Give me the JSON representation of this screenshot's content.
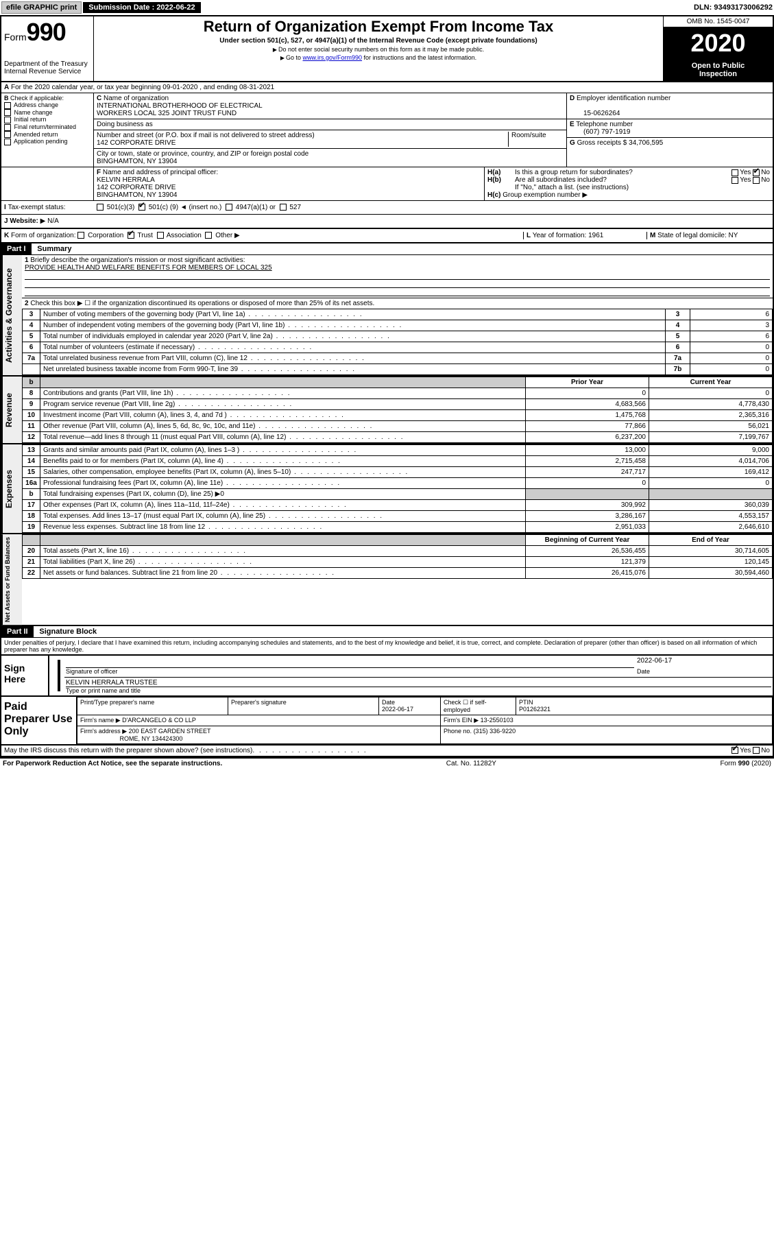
{
  "topbar": {
    "efile": "efile GRAPHIC print",
    "submission_label": "Submission Date : 2022-06-22",
    "dln": "DLN: 93493173006292"
  },
  "header": {
    "form_word": "Form",
    "form_num": "990",
    "dept1": "Department of the Treasury",
    "dept2": "Internal Revenue Service",
    "title": "Return of Organization Exempt From Income Tax",
    "subtitle": "Under section 501(c), 527, or 4947(a)(1) of the Internal Revenue Code (except private foundations)",
    "line1": "Do not enter social security numbers on this form as it may be made public.",
    "line2_pre": "Go to ",
    "line2_link": "www.irs.gov/Form990",
    "line2_post": " for instructions and the latest information.",
    "omb": "OMB No. 1545-0047",
    "year": "2020",
    "open1": "Open to Public",
    "open2": "Inspection"
  },
  "a": {
    "text": "For the 2020 calendar year, or tax year beginning 09-01-2020   , and ending 08-31-2021"
  },
  "b": {
    "label": "Check if applicable:",
    "opts": [
      "Address change",
      "Name change",
      "Initial return",
      "Final return/terminated",
      "Amended return",
      "Application pending"
    ]
  },
  "c": {
    "name_label": "Name of organization",
    "name1": "INTERNATIONAL BROTHERHOOD OF ELECTRICAL",
    "name2": "WORKERS LOCAL 325 JOINT TRUST FUND",
    "dba_label": "Doing business as",
    "street_label": "Number and street (or P.O. box if mail is not delivered to street address)",
    "room_label": "Room/suite",
    "street": "142 CORPORATE DRIVE",
    "city_label": "City or town, state or province, country, and ZIP or foreign postal code",
    "city": "BINGHAMTON, NY  13904"
  },
  "d": {
    "label": "Employer identification number",
    "val": "15-0626264"
  },
  "e": {
    "label": "Telephone number",
    "val": "(607) 797-1919"
  },
  "g": {
    "label": "Gross receipts $",
    "val": "34,706,595"
  },
  "f": {
    "label": "Name and address of principal officer:",
    "name": "KELVIN HERRALA",
    "street": "142 CORPORATE DRIVE",
    "city": "BINGHAMTON, NY  13904"
  },
  "h": {
    "a_label": "Is this a group return for subordinates?",
    "b_label": "Are all subordinates included?",
    "b_note": "If \"No,\" attach a list. (see instructions)",
    "c_label": "Group exemption number",
    "yes": "Yes",
    "no": "No"
  },
  "i": {
    "label": "Tax-exempt status:",
    "c3": "501(c)(3)",
    "c_pre": "501(c) (",
    "c_num": "9",
    "c_post": ") ◄ (insert no.)",
    "a1": "4947(a)(1) or",
    "s527": "527"
  },
  "j": {
    "label": "Website:",
    "val": "N/A"
  },
  "k": {
    "label": "Form of organization:",
    "corp": "Corporation",
    "trust": "Trust",
    "assoc": "Association",
    "other": "Other"
  },
  "l": {
    "label": "Year of formation:",
    "val": "1961"
  },
  "m": {
    "label": "State of legal domicile:",
    "val": "NY"
  },
  "part1": {
    "label": "Part I",
    "title": "Summary",
    "q1": "Briefly describe the organization's mission or most significant activities:",
    "q1_ans": "PROVIDE HEALTH AND WELFARE BENEFITS FOR MEMBERS OF LOCAL 325",
    "q2": "Check this box ▶ ☐ if the organization discontinued its operations or disposed of more than 25% of its net assets.",
    "vert_gov": "Activities & Governance",
    "vert_rev": "Revenue",
    "vert_exp": "Expenses",
    "vert_net": "Net Assets or Fund Balances",
    "col_prior": "Prior Year",
    "col_current": "Current Year",
    "col_begin": "Beginning of Current Year",
    "col_end": "End of Year",
    "lines_gov": [
      {
        "n": "3",
        "t": "Number of voting members of the governing body (Part VI, line 1a)",
        "box": "3",
        "v": "6"
      },
      {
        "n": "4",
        "t": "Number of independent voting members of the governing body (Part VI, line 1b)",
        "box": "4",
        "v": "3"
      },
      {
        "n": "5",
        "t": "Total number of individuals employed in calendar year 2020 (Part V, line 2a)",
        "box": "5",
        "v": "6"
      },
      {
        "n": "6",
        "t": "Total number of volunteers (estimate if necessary)",
        "box": "6",
        "v": "0"
      },
      {
        "n": "7a",
        "t": "Total unrelated business revenue from Part VIII, column (C), line 12",
        "box": "7a",
        "v": "0"
      },
      {
        "n": "",
        "t": "Net unrelated business taxable income from Form 990-T, line 39",
        "box": "7b",
        "v": "0"
      }
    ],
    "lines_rev": [
      {
        "n": "8",
        "t": "Contributions and grants (Part VIII, line 1h)",
        "p": "0",
        "c": "0"
      },
      {
        "n": "9",
        "t": "Program service revenue (Part VIII, line 2g)",
        "p": "4,683,566",
        "c": "4,778,430"
      },
      {
        "n": "10",
        "t": "Investment income (Part VIII, column (A), lines 3, 4, and 7d )",
        "p": "1,475,768",
        "c": "2,365,316"
      },
      {
        "n": "11",
        "t": "Other revenue (Part VIII, column (A), lines 5, 6d, 8c, 9c, 10c, and 11e)",
        "p": "77,866",
        "c": "56,021"
      },
      {
        "n": "12",
        "t": "Total revenue—add lines 8 through 11 (must equal Part VIII, column (A), line 12)",
        "p": "6,237,200",
        "c": "7,199,767"
      }
    ],
    "lines_exp": [
      {
        "n": "13",
        "t": "Grants and similar amounts paid (Part IX, column (A), lines 1–3 )",
        "p": "13,000",
        "c": "9,000"
      },
      {
        "n": "14",
        "t": "Benefits paid to or for members (Part IX, column (A), line 4)",
        "p": "2,715,458",
        "c": "4,014,706"
      },
      {
        "n": "15",
        "t": "Salaries, other compensation, employee benefits (Part IX, column (A), lines 5–10)",
        "p": "247,717",
        "c": "169,412"
      },
      {
        "n": "16a",
        "t": "Professional fundraising fees (Part IX, column (A), line 11e)",
        "p": "0",
        "c": "0"
      },
      {
        "n": "b",
        "t": "Total fundraising expenses (Part IX, column (D), line 25) ▶0",
        "p": "",
        "c": "",
        "shade": true
      },
      {
        "n": "17",
        "t": "Other expenses (Part IX, column (A), lines 11a–11d, 11f–24e)",
        "p": "309,992",
        "c": "360,039"
      },
      {
        "n": "18",
        "t": "Total expenses. Add lines 13–17 (must equal Part IX, column (A), line 25)",
        "p": "3,286,167",
        "c": "4,553,157"
      },
      {
        "n": "19",
        "t": "Revenue less expenses. Subtract line 18 from line 12",
        "p": "2,951,033",
        "c": "2,646,610"
      }
    ],
    "lines_net": [
      {
        "n": "20",
        "t": "Total assets (Part X, line 16)",
        "p": "26,536,455",
        "c": "30,714,605"
      },
      {
        "n": "21",
        "t": "Total liabilities (Part X, line 26)",
        "p": "121,379",
        "c": "120,145"
      },
      {
        "n": "22",
        "t": "Net assets or fund balances. Subtract line 21 from line 20",
        "p": "26,415,076",
        "c": "30,594,460"
      }
    ]
  },
  "part2": {
    "label": "Part II",
    "title": "Signature Block",
    "decl": "Under penalties of perjury, I declare that I have examined this return, including accompanying schedules and statements, and to the best of my knowledge and belief, it is true, correct, and complete. Declaration of preparer (other than officer) is based on all information of which preparer has any knowledge."
  },
  "sign": {
    "here": "Sign Here",
    "sig_label": "Signature of officer",
    "date_label": "Date",
    "date_val": "2022-06-17",
    "name": "KELVIN HERRALA  TRUSTEE",
    "name_label": "Type or print name and title"
  },
  "paid": {
    "title": "Paid Preparer Use Only",
    "h1": "Print/Type preparer's name",
    "h2": "Preparer's signature",
    "h3_l": "Date",
    "h3_v": "2022-06-17",
    "h4_l": "Check ☐ if self-employed",
    "h5_l": "PTIN",
    "h5_v": "P01262321",
    "firm_name_l": "Firm's name   ▶",
    "firm_name": "D'ARCANGELO & CO LLP",
    "firm_ein_l": "Firm's EIN ▶",
    "firm_ein": "13-2550103",
    "firm_addr_l": "Firm's address ▶",
    "firm_addr1": "200 EAST GARDEN STREET",
    "firm_addr2": "ROME, NY  134424300",
    "phone_l": "Phone no.",
    "phone": "(315) 336-9220"
  },
  "footer": {
    "discuss": "May the IRS discuss this return with the preparer shown above? (see instructions)",
    "yes": "Yes",
    "no": "No",
    "paperwork": "For Paperwork Reduction Act Notice, see the separate instructions.",
    "catno": "Cat. No. 11282Y",
    "formno": "Form 990 (2020)"
  },
  "labels": {
    "b": "B",
    "c": "C",
    "d": "D",
    "e": "E",
    "f": "F",
    "g": "G",
    "ha": "H(a)",
    "hb": "H(b)",
    "hc": "H(c)",
    "i": "I",
    "j": "J",
    "k": "K",
    "l": "L",
    "m": "M",
    "a": "A"
  }
}
